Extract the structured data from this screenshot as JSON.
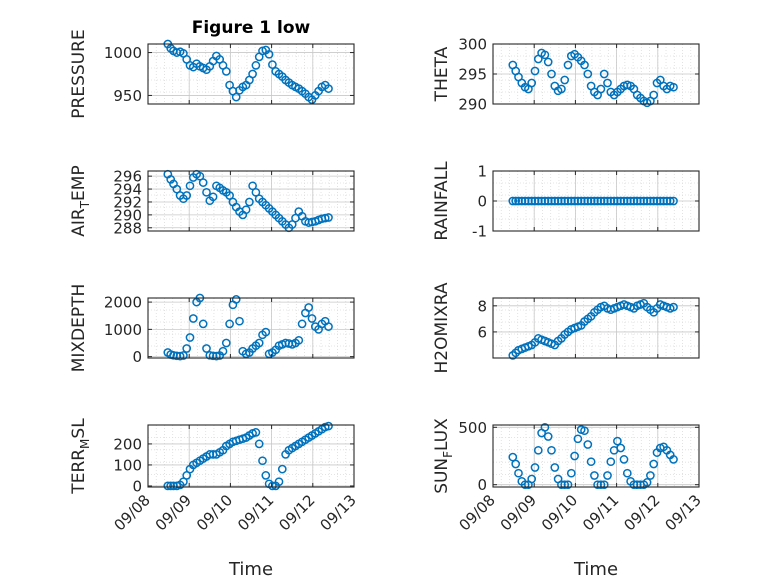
{
  "figure": {
    "title": "Figure 1 low",
    "marker_color": "#0072BD"
  },
  "chart_data": [
    {
      "type": "scatter",
      "title": "Figure 1 low",
      "ylabel": "PRESSURE",
      "ylabel_sub": "",
      "ylabel_tail": "",
      "ylim": [
        940,
        1010
      ],
      "yticks": [
        950,
        1000
      ],
      "grid": true,
      "xlim": [
        0,
        5
      ],
      "xticklabels": [],
      "xlabel": "",
      "x": [
        0.48,
        0.55,
        0.62,
        0.7,
        0.78,
        0.86,
        0.94,
        1.02,
        1.1,
        1.18,
        1.26,
        1.34,
        1.42,
        1.5,
        1.58,
        1.66,
        1.74,
        1.82,
        1.9,
        1.98,
        2.06,
        2.14,
        2.22,
        2.3,
        2.38,
        2.46,
        2.54,
        2.62,
        2.7,
        2.78,
        2.86,
        2.94,
        3.02,
        3.1,
        3.18,
        3.26,
        3.34,
        3.42,
        3.5,
        3.58,
        3.66,
        3.74,
        3.82,
        3.9,
        3.98,
        4.06,
        4.14,
        4.22,
        4.3,
        4.38
      ],
      "y": [
        1010,
        1005,
        1002,
        1000,
        1001,
        999,
        992,
        985,
        983,
        987,
        984,
        982,
        980,
        984,
        990,
        996,
        992,
        985,
        978,
        962,
        955,
        948,
        956,
        960,
        962,
        968,
        975,
        985,
        995,
        1002,
        1003,
        998,
        986,
        978,
        975,
        972,
        968,
        965,
        962,
        960,
        958,
        955,
        952,
        948,
        945,
        950,
        955,
        960,
        962,
        958
      ]
    },
    {
      "type": "scatter",
      "title": "",
      "ylabel": "THETA",
      "ylabel_sub": "",
      "ylabel_tail": "",
      "ylim": [
        290,
        300
      ],
      "yticks": [
        290,
        295,
        300
      ],
      "grid": true,
      "xlim": [
        0,
        5
      ],
      "xticklabels": [],
      "xlabel": "",
      "x": [
        0.48,
        0.55,
        0.62,
        0.7,
        0.78,
        0.86,
        0.94,
        1.02,
        1.1,
        1.18,
        1.26,
        1.34,
        1.42,
        1.5,
        1.58,
        1.66,
        1.74,
        1.82,
        1.9,
        1.98,
        2.06,
        2.14,
        2.22,
        2.3,
        2.38,
        2.46,
        2.54,
        2.62,
        2.7,
        2.78,
        2.86,
        2.94,
        3.02,
        3.1,
        3.18,
        3.26,
        3.34,
        3.42,
        3.5,
        3.58,
        3.66,
        3.74,
        3.82,
        3.9,
        3.98,
        4.06,
        4.14,
        4.22,
        4.3,
        4.38
      ],
      "y": [
        296.5,
        295.5,
        294.5,
        293.5,
        292.8,
        292.5,
        293.5,
        295.5,
        297.5,
        298.5,
        298.2,
        297,
        295,
        293,
        292.2,
        292.5,
        294,
        296.5,
        298,
        298.3,
        297.8,
        297.2,
        296.5,
        295,
        293,
        292,
        291.5,
        292.5,
        295,
        293.5,
        292,
        291.5,
        292,
        292.5,
        293,
        293.2,
        293,
        292.5,
        291.5,
        291,
        290.5,
        290.2,
        290.5,
        291.5,
        293.5,
        294,
        293,
        292.5,
        293,
        292.8
      ]
    },
    {
      "type": "scatter",
      "title": "",
      "ylabel": "AIR",
      "ylabel_sub": "T",
      "ylabel_tail": "EMP",
      "ylim": [
        287.5,
        296.8
      ],
      "yticks": [
        288,
        290,
        292,
        294,
        296
      ],
      "grid": true,
      "xlim": [
        0,
        5
      ],
      "xticklabels": [],
      "xlabel": "",
      "x": [
        0.48,
        0.55,
        0.62,
        0.7,
        0.78,
        0.86,
        0.94,
        1.02,
        1.1,
        1.18,
        1.26,
        1.34,
        1.42,
        1.5,
        1.58,
        1.66,
        1.74,
        1.82,
        1.9,
        1.98,
        2.06,
        2.14,
        2.22,
        2.3,
        2.38,
        2.46,
        2.54,
        2.62,
        2.7,
        2.78,
        2.86,
        2.94,
        3.02,
        3.1,
        3.18,
        3.26,
        3.34,
        3.42,
        3.5,
        3.58,
        3.66,
        3.74,
        3.82,
        3.9,
        3.98,
        4.06,
        4.14,
        4.22,
        4.3,
        4.38
      ],
      "y": [
        296.3,
        295.5,
        294.8,
        294,
        293,
        292.5,
        293,
        294.5,
        295.8,
        296.3,
        296,
        295,
        293.5,
        292.2,
        292.8,
        294.5,
        294.2,
        293.8,
        293.5,
        293,
        292,
        291.2,
        290.5,
        290,
        290.8,
        292,
        294.5,
        293.5,
        292.5,
        292,
        291.5,
        291,
        290.5,
        290,
        289.5,
        289,
        288.5,
        288,
        288.5,
        289.5,
        290.5,
        289.8,
        289,
        288.8,
        288.9,
        289,
        289.2,
        289.4,
        289.5,
        289.6
      ]
    },
    {
      "type": "scatter",
      "title": "",
      "ylabel": "RAINFALL",
      "ylabel_sub": "",
      "ylabel_tail": "",
      "ylim": [
        -1,
        1
      ],
      "yticks": [
        -1,
        0,
        1
      ],
      "grid": true,
      "xlim": [
        0,
        5
      ],
      "xticklabels": [],
      "xlabel": "",
      "x": [
        0.48,
        0.55,
        0.62,
        0.7,
        0.78,
        0.86,
        0.94,
        1.02,
        1.1,
        1.18,
        1.26,
        1.34,
        1.42,
        1.5,
        1.58,
        1.66,
        1.74,
        1.82,
        1.9,
        1.98,
        2.06,
        2.14,
        2.22,
        2.3,
        2.38,
        2.46,
        2.54,
        2.62,
        2.7,
        2.78,
        2.86,
        2.94,
        3.02,
        3.1,
        3.18,
        3.26,
        3.34,
        3.42,
        3.5,
        3.58,
        3.66,
        3.74,
        3.82,
        3.9,
        3.98,
        4.06,
        4.14,
        4.22,
        4.3,
        4.38
      ],
      "y": [
        0,
        0,
        0,
        0,
        0,
        0,
        0,
        0,
        0,
        0,
        0,
        0,
        0,
        0,
        0,
        0,
        0,
        0,
        0,
        0,
        0,
        0,
        0,
        0,
        0,
        0,
        0,
        0,
        0,
        0,
        0,
        0,
        0,
        0,
        0,
        0,
        0,
        0,
        0,
        0,
        0,
        0,
        0,
        0,
        0,
        0,
        0,
        0,
        0,
        0
      ]
    },
    {
      "type": "scatter",
      "title": "",
      "ylabel": "MIXDEPTH",
      "ylabel_sub": "",
      "ylabel_tail": "",
      "ylim": [
        -50,
        2150
      ],
      "yticks": [
        0,
        1000,
        2000
      ],
      "grid": true,
      "xlim": [
        0,
        5
      ],
      "xticklabels": [],
      "xlabel": "",
      "x": [
        0.48,
        0.55,
        0.62,
        0.7,
        0.78,
        0.86,
        0.94,
        1.02,
        1.1,
        1.18,
        1.26,
        1.34,
        1.42,
        1.5,
        1.58,
        1.66,
        1.74,
        1.82,
        1.9,
        1.98,
        2.06,
        2.14,
        2.22,
        2.3,
        2.38,
        2.46,
        2.54,
        2.62,
        2.7,
        2.78,
        2.86,
        2.94,
        3.02,
        3.1,
        3.18,
        3.26,
        3.34,
        3.42,
        3.5,
        3.58,
        3.66,
        3.74,
        3.82,
        3.9,
        3.98,
        4.06,
        4.14,
        4.22,
        4.3,
        4.38
      ],
      "y": [
        150,
        80,
        50,
        30,
        20,
        40,
        300,
        700,
        1400,
        2000,
        2150,
        1200,
        300,
        50,
        30,
        20,
        40,
        200,
        500,
        1200,
        1900,
        2100,
        1300,
        200,
        100,
        150,
        300,
        400,
        500,
        800,
        900,
        100,
        150,
        250,
        400,
        450,
        500,
        480,
        450,
        500,
        600,
        1200,
        1600,
        1800,
        1400,
        1100,
        1000,
        1200,
        1300,
        1100
      ]
    },
    {
      "type": "scatter",
      "title": "",
      "ylabel": "H2OMIXRA",
      "ylabel_sub": "",
      "ylabel_tail": "",
      "ylim": [
        4,
        8.6
      ],
      "yticks": [
        6,
        8
      ],
      "grid": true,
      "xlim": [
        0,
        5
      ],
      "xticklabels": [],
      "xlabel": "",
      "x": [
        0.48,
        0.55,
        0.62,
        0.7,
        0.78,
        0.86,
        0.94,
        1.02,
        1.1,
        1.18,
        1.26,
        1.34,
        1.42,
        1.5,
        1.58,
        1.66,
        1.74,
        1.82,
        1.9,
        1.98,
        2.06,
        2.14,
        2.22,
        2.3,
        2.38,
        2.46,
        2.54,
        2.62,
        2.7,
        2.78,
        2.86,
        2.94,
        3.02,
        3.1,
        3.18,
        3.26,
        3.34,
        3.42,
        3.5,
        3.58,
        3.66,
        3.74,
        3.82,
        3.9,
        3.98,
        4.06,
        4.14,
        4.22,
        4.3,
        4.38
      ],
      "y": [
        4.2,
        4.4,
        4.6,
        4.7,
        4.8,
        4.9,
        5.0,
        5.2,
        5.5,
        5.4,
        5.3,
        5.2,
        5.1,
        5.0,
        5.3,
        5.5,
        5.8,
        6.0,
        6.2,
        6.3,
        6.4,
        6.5,
        6.8,
        7.0,
        7.2,
        7.5,
        7.7,
        7.9,
        8.0,
        7.8,
        7.7,
        7.8,
        7.9,
        8.0,
        8.1,
        8.0,
        7.9,
        7.8,
        8.0,
        8.1,
        8.2,
        7.9,
        7.7,
        7.5,
        7.8,
        8.1,
        8.0,
        7.9,
        7.8,
        7.9
      ]
    },
    {
      "type": "scatter",
      "title": "",
      "ylabel": "TERR",
      "ylabel_sub": "M",
      "ylabel_tail": "SL",
      "ylim": [
        -5,
        290
      ],
      "yticks": [
        0,
        100,
        200
      ],
      "grid": true,
      "xlim": [
        0,
        5
      ],
      "xticklabels": [
        "09/08",
        "09/09",
        "09/10",
        "09/11",
        "09/12",
        "09/13"
      ],
      "xlabel": "Time",
      "x": [
        0.48,
        0.55,
        0.62,
        0.7,
        0.78,
        0.86,
        0.94,
        1.02,
        1.1,
        1.18,
        1.26,
        1.34,
        1.42,
        1.5,
        1.58,
        1.66,
        1.74,
        1.82,
        1.9,
        1.98,
        2.06,
        2.14,
        2.22,
        2.3,
        2.38,
        2.46,
        2.54,
        2.62,
        2.7,
        2.78,
        2.86,
        2.94,
        3.02,
        3.1,
        3.18,
        3.26,
        3.34,
        3.42,
        3.5,
        3.58,
        3.66,
        3.74,
        3.82,
        3.9,
        3.98,
        4.06,
        4.14,
        4.22,
        4.3,
        4.38
      ],
      "y": [
        0,
        0,
        0,
        0,
        5,
        20,
        50,
        80,
        100,
        110,
        120,
        130,
        140,
        150,
        150,
        150,
        160,
        170,
        190,
        200,
        210,
        215,
        220,
        225,
        230,
        240,
        250,
        255,
        200,
        120,
        50,
        10,
        0,
        0,
        20,
        80,
        150,
        170,
        180,
        190,
        200,
        210,
        220,
        230,
        240,
        250,
        260,
        270,
        280,
        285
      ]
    },
    {
      "type": "scatter",
      "title": "",
      "ylabel": "SUN",
      "ylabel_sub": "F",
      "ylabel_tail": "LUX",
      "ylim": [
        -20,
        520
      ],
      "yticks": [
        0,
        500
      ],
      "grid": true,
      "xlim": [
        0,
        5
      ],
      "xticklabels": [
        "09/08",
        "09/09",
        "09/10",
        "09/11",
        "09/12",
        "09/13"
      ],
      "xlabel": "Time",
      "x": [
        0.48,
        0.55,
        0.62,
        0.7,
        0.78,
        0.86,
        0.94,
        1.02,
        1.1,
        1.18,
        1.26,
        1.34,
        1.42,
        1.5,
        1.58,
        1.66,
        1.74,
        1.82,
        1.9,
        1.98,
        2.06,
        2.14,
        2.22,
        2.3,
        2.38,
        2.46,
        2.54,
        2.62,
        2.7,
        2.78,
        2.86,
        2.94,
        3.02,
        3.1,
        3.18,
        3.26,
        3.34,
        3.42,
        3.5,
        3.58,
        3.66,
        3.74,
        3.82,
        3.9,
        3.98,
        4.06,
        4.14,
        4.22,
        4.3,
        4.38
      ],
      "y": [
        240,
        180,
        100,
        30,
        0,
        0,
        50,
        150,
        300,
        450,
        500,
        420,
        300,
        150,
        50,
        0,
        0,
        0,
        100,
        250,
        400,
        480,
        470,
        350,
        200,
        80,
        0,
        0,
        0,
        80,
        200,
        300,
        380,
        320,
        220,
        100,
        30,
        0,
        0,
        0,
        0,
        20,
        80,
        180,
        280,
        320,
        330,
        300,
        260,
        220
      ]
    }
  ]
}
